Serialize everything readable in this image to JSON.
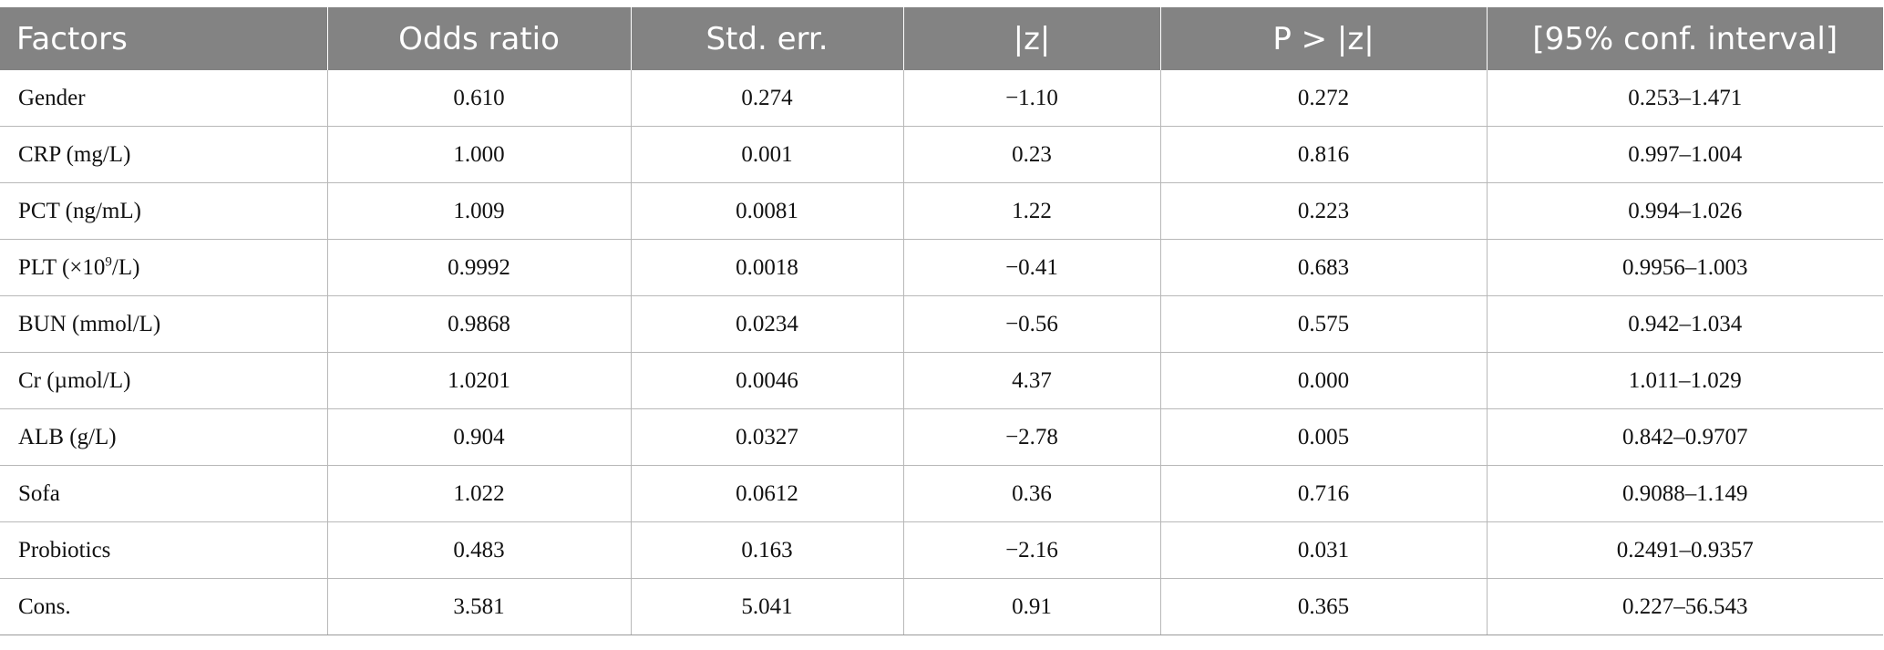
{
  "table": {
    "headers": [
      "Factors",
      "Odds ratio",
      "Std. err.",
      "|z|",
      "P > |z|",
      "[95% conf. interval]"
    ],
    "rows": [
      [
        "Gender",
        "0.610",
        "0.274",
        "−1.10",
        "0.272",
        "0.253–1.471"
      ],
      [
        "CRP (mg/L)",
        "1.000",
        "0.001",
        "0.23",
        "0.816",
        "0.997–1.004"
      ],
      [
        "PCT (ng/mL)",
        "1.009",
        "0.0081",
        "1.22",
        "0.223",
        "0.994–1.026"
      ],
      [
        "PLT (×10",
        "0.9992",
        "0.0018",
        "−0.41",
        "0.683",
        "0.9956–1.003"
      ],
      [
        "BUN (mmol/L)",
        "0.9868",
        "0.0234",
        "−0.56",
        "0.575",
        "0.942–1.034"
      ],
      [
        "Cr (µmol/L)",
        "1.0201",
        "0.0046",
        "4.37",
        "0.000",
        "1.011–1.029"
      ],
      [
        "ALB (g/L)",
        "0.904",
        "0.0327",
        "−2.78",
        "0.005",
        "0.842–0.9707"
      ],
      [
        "Sofa",
        "1.022",
        "0.0612",
        "0.36",
        "0.716",
        "0.9088–1.149"
      ],
      [
        "Probiotics",
        "0.483",
        "0.163",
        "−2.16",
        "0.031",
        "0.2491–0.9357"
      ],
      [
        "Cons.",
        "3.581",
        "5.041",
        "0.91",
        "0.365",
        "0.227–56.543"
      ]
    ],
    "plt_label_sup": "9",
    "plt_label_suffix": "/L)"
  }
}
